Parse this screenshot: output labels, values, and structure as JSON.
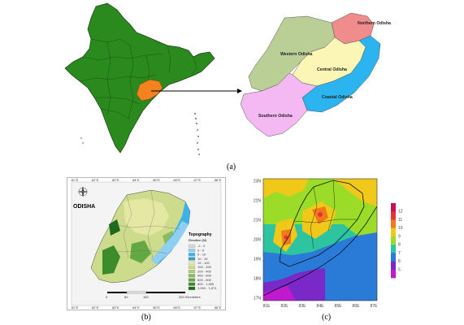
{
  "captions": {
    "a": "(a)",
    "b": "(b)",
    "c": "(c)"
  },
  "panel_a": {
    "regions": [
      {
        "name": "Northern Odisha",
        "color": "#f08c8c"
      },
      {
        "name": "Western Odisha",
        "color": "#b9cf96"
      },
      {
        "name": "Central Odisha",
        "color": "#fbf6b6"
      },
      {
        "name": "Coastal Odisha",
        "color": "#2cb4f0"
      },
      {
        "name": "Southern Odisha",
        "color": "#f4b8f2"
      }
    ],
    "india_color": "#2a8a1e",
    "odisha_highlight": "#f58220"
  },
  "panel_b": {
    "title": "ODISHA",
    "compass_icon": "compass-rose-icon",
    "legend_title": "Topography",
    "legend_subtitle": "Elevation (M)",
    "legend_items": [
      {
        "label": "-2 - 0",
        "color": "#d8d8d8"
      },
      {
        "label": "0 - 5",
        "color": "#8ecff2"
      },
      {
        "label": "5 - 10",
        "color": "#3fb0e8"
      },
      {
        "label": "10 - 15",
        "color": "#2aa3c4"
      },
      {
        "label": "15 - 100",
        "color": "#e4e8a2"
      },
      {
        "label": "100 - 200",
        "color": "#ccdc8c"
      },
      {
        "label": "200 - 400",
        "color": "#b0cc72"
      },
      {
        "label": "400 - 600",
        "color": "#8cbc5a"
      },
      {
        "label": "600 - 800",
        "color": "#64a844"
      },
      {
        "label": "800 - 1,000",
        "color": "#3c8c2c"
      },
      {
        "label": "1,000 - 1,671",
        "color": "#1e6a1c"
      }
    ],
    "scale_labels": [
      "0",
      "80",
      "160",
      "320 Kilometers"
    ],
    "top_ticks": [
      "81°E",
      "82°E",
      "83°E",
      "84°E",
      "85°E",
      "86°E",
      "87°E",
      "88°E"
    ],
    "bottom_ticks": [
      "81°E",
      "82°E",
      "83°E",
      "84°E",
      "85°E",
      "86°E",
      "87°E",
      "88°E"
    ]
  },
  "panel_c": {
    "y_ticks": [
      "23N",
      "22N",
      "21N",
      "20N",
      "19N",
      "18N",
      "17N"
    ],
    "x_ticks": [
      "81E",
      "82E",
      "83E",
      "84E",
      "85E",
      "86E",
      "87E"
    ],
    "colorbar_labels": [
      "12",
      "11",
      "10",
      "9",
      "8",
      "7",
      "6",
      "5"
    ],
    "colorbar_colors": [
      "#c8105a",
      "#e8303a",
      "#f07a1a",
      "#f0c81a",
      "#9adc28",
      "#2ec4a0",
      "#2a7ad8",
      "#7a28c8",
      "#c01ad0"
    ]
  }
}
